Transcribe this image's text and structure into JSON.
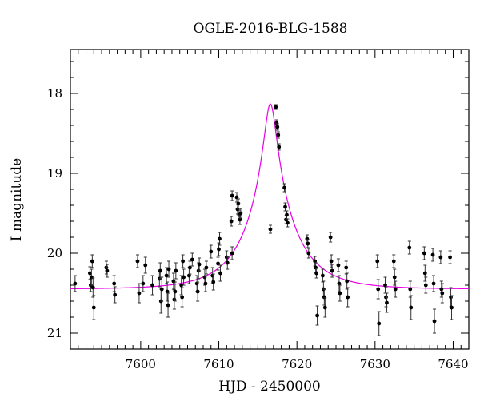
{
  "chart_data": {
    "type": "scatter",
    "title": "OGLE-2016-BLG-1588",
    "xlabel": "HJD - 2450000",
    "ylabel": "I magnitude",
    "xlim": [
      7591,
      7642
    ],
    "ylim": [
      21.2,
      17.45
    ],
    "y_inverted": true,
    "x_ticks": [
      7600,
      7610,
      7620,
      7630,
      7640
    ],
    "y_ticks": [
      18,
      19,
      20,
      21
    ],
    "colors": {
      "data": "#000000",
      "model": "#e600e6"
    },
    "model": {
      "t0": 7616.6,
      "peak_mag": 18.13,
      "base_mag": 20.45,
      "u0": 0.12,
      "tE": 6.0
    },
    "series": [
      {
        "points": [
          [
            7591.6,
            20.38,
            0.1
          ],
          [
            7593.5,
            20.25,
            0.08
          ],
          [
            7593.6,
            20.4,
            0.08
          ],
          [
            7593.7,
            20.3,
            0.1
          ],
          [
            7593.8,
            20.1,
            0.08
          ],
          [
            7593.9,
            20.43,
            0.12
          ],
          [
            7594.0,
            20.68,
            0.15
          ],
          [
            7595.6,
            20.18,
            0.08
          ],
          [
            7595.7,
            20.22,
            0.08
          ],
          [
            7596.6,
            20.38,
            0.1
          ],
          [
            7596.7,
            20.52,
            0.1
          ],
          [
            7599.6,
            20.1,
            0.08
          ],
          [
            7599.8,
            20.5,
            0.12
          ],
          [
            7600.3,
            20.38,
            0.1
          ],
          [
            7600.6,
            20.15,
            0.1
          ],
          [
            7601.5,
            20.4,
            0.12
          ],
          [
            7602.4,
            20.32,
            0.1
          ],
          [
            7602.5,
            20.22,
            0.1
          ],
          [
            7602.6,
            20.6,
            0.15
          ],
          [
            7602.7,
            20.45,
            0.15
          ],
          [
            7603.3,
            20.28,
            0.1
          ],
          [
            7603.4,
            20.48,
            0.12
          ],
          [
            7603.5,
            20.65,
            0.15
          ],
          [
            7603.6,
            20.2,
            0.1
          ],
          [
            7604.2,
            20.35,
            0.1
          ],
          [
            7604.3,
            20.58,
            0.12
          ],
          [
            7604.4,
            20.48,
            0.12
          ],
          [
            7604.5,
            20.22,
            0.1
          ],
          [
            7605.2,
            20.4,
            0.12
          ],
          [
            7605.3,
            20.55,
            0.12
          ],
          [
            7605.4,
            20.1,
            0.08
          ],
          [
            7605.5,
            20.3,
            0.1
          ],
          [
            7606.2,
            20.28,
            0.1
          ],
          [
            7606.3,
            20.18,
            0.08
          ],
          [
            7606.6,
            20.08,
            0.08
          ],
          [
            7607.2,
            20.38,
            0.1
          ],
          [
            7607.3,
            20.48,
            0.12
          ],
          [
            7607.4,
            20.22,
            0.1
          ],
          [
            7607.5,
            20.14,
            0.08
          ],
          [
            7608.2,
            20.3,
            0.1
          ],
          [
            7608.3,
            20.38,
            0.1
          ],
          [
            7608.4,
            20.18,
            0.08
          ],
          [
            7609.0,
            19.98,
            0.08
          ],
          [
            7609.2,
            20.28,
            0.1
          ],
          [
            7609.3,
            20.36,
            0.1
          ],
          [
            7609.9,
            20.13,
            0.08
          ],
          [
            7610.0,
            19.95,
            0.08
          ],
          [
            7610.1,
            19.82,
            0.08
          ],
          [
            7610.2,
            20.25,
            0.1
          ],
          [
            7611.0,
            20.05,
            0.08
          ],
          [
            7611.1,
            20.12,
            0.08
          ],
          [
            7611.7,
            20.0,
            0.08
          ],
          [
            7611.6,
            19.6,
            0.06
          ],
          [
            7611.7,
            19.28,
            0.06
          ],
          [
            7612.3,
            19.3,
            0.06
          ],
          [
            7612.4,
            19.45,
            0.06
          ],
          [
            7612.5,
            19.38,
            0.06
          ],
          [
            7612.6,
            19.52,
            0.06
          ],
          [
            7612.7,
            19.58,
            0.06
          ],
          [
            7612.8,
            19.5,
            0.06
          ],
          [
            7616.6,
            19.7,
            0.05
          ],
          [
            7617.3,
            18.17,
            0.03
          ],
          [
            7617.4,
            18.37,
            0.04
          ],
          [
            7617.5,
            18.42,
            0.04
          ],
          [
            7617.6,
            18.52,
            0.04
          ],
          [
            7617.7,
            18.67,
            0.04
          ],
          [
            7618.4,
            19.18,
            0.05
          ],
          [
            7618.5,
            19.42,
            0.05
          ],
          [
            7618.6,
            19.58,
            0.05
          ],
          [
            7618.7,
            19.52,
            0.05
          ],
          [
            7618.8,
            19.62,
            0.05
          ],
          [
            7621.3,
            19.82,
            0.05
          ],
          [
            7621.4,
            19.88,
            0.05
          ],
          [
            7621.5,
            20.0,
            0.06
          ],
          [
            7622.3,
            20.1,
            0.06
          ],
          [
            7622.4,
            20.18,
            0.06
          ],
          [
            7622.5,
            20.25,
            0.06
          ],
          [
            7622.6,
            20.78,
            0.12
          ],
          [
            7623.3,
            20.28,
            0.08
          ],
          [
            7623.4,
            20.45,
            0.1
          ],
          [
            7623.5,
            20.55,
            0.1
          ],
          [
            7623.6,
            20.68,
            0.12
          ],
          [
            7624.3,
            19.8,
            0.06
          ],
          [
            7624.4,
            20.1,
            0.08
          ],
          [
            7624.5,
            20.22,
            0.08
          ],
          [
            7625.3,
            20.15,
            0.08
          ],
          [
            7625.4,
            20.38,
            0.1
          ],
          [
            7625.5,
            20.5,
            0.1
          ],
          [
            7626.3,
            20.18,
            0.08
          ],
          [
            7626.4,
            20.35,
            0.1
          ],
          [
            7626.5,
            20.55,
            0.12
          ],
          [
            7630.3,
            20.1,
            0.08
          ],
          [
            7630.4,
            20.45,
            0.12
          ],
          [
            7630.5,
            20.88,
            0.15
          ],
          [
            7631.3,
            20.4,
            0.1
          ],
          [
            7631.4,
            20.55,
            0.12
          ],
          [
            7631.5,
            20.62,
            0.12
          ],
          [
            7632.4,
            20.1,
            0.08
          ],
          [
            7632.5,
            20.3,
            0.1
          ],
          [
            7632.6,
            20.45,
            0.1
          ],
          [
            7634.4,
            19.93,
            0.08
          ],
          [
            7634.5,
            20.45,
            0.1
          ],
          [
            7634.6,
            20.68,
            0.15
          ],
          [
            7636.3,
            20.0,
            0.08
          ],
          [
            7636.4,
            20.25,
            0.1
          ],
          [
            7636.5,
            20.4,
            0.1
          ],
          [
            7637.4,
            20.02,
            0.08
          ],
          [
            7637.5,
            20.38,
            0.1
          ],
          [
            7637.6,
            20.85,
            0.15
          ],
          [
            7638.4,
            20.05,
            0.08
          ],
          [
            7638.5,
            20.45,
            0.1
          ],
          [
            7638.6,
            20.5,
            0.12
          ],
          [
            7639.6,
            20.05,
            0.08
          ],
          [
            7639.7,
            20.55,
            0.12
          ],
          [
            7639.8,
            20.68,
            0.15
          ]
        ]
      }
    ]
  }
}
